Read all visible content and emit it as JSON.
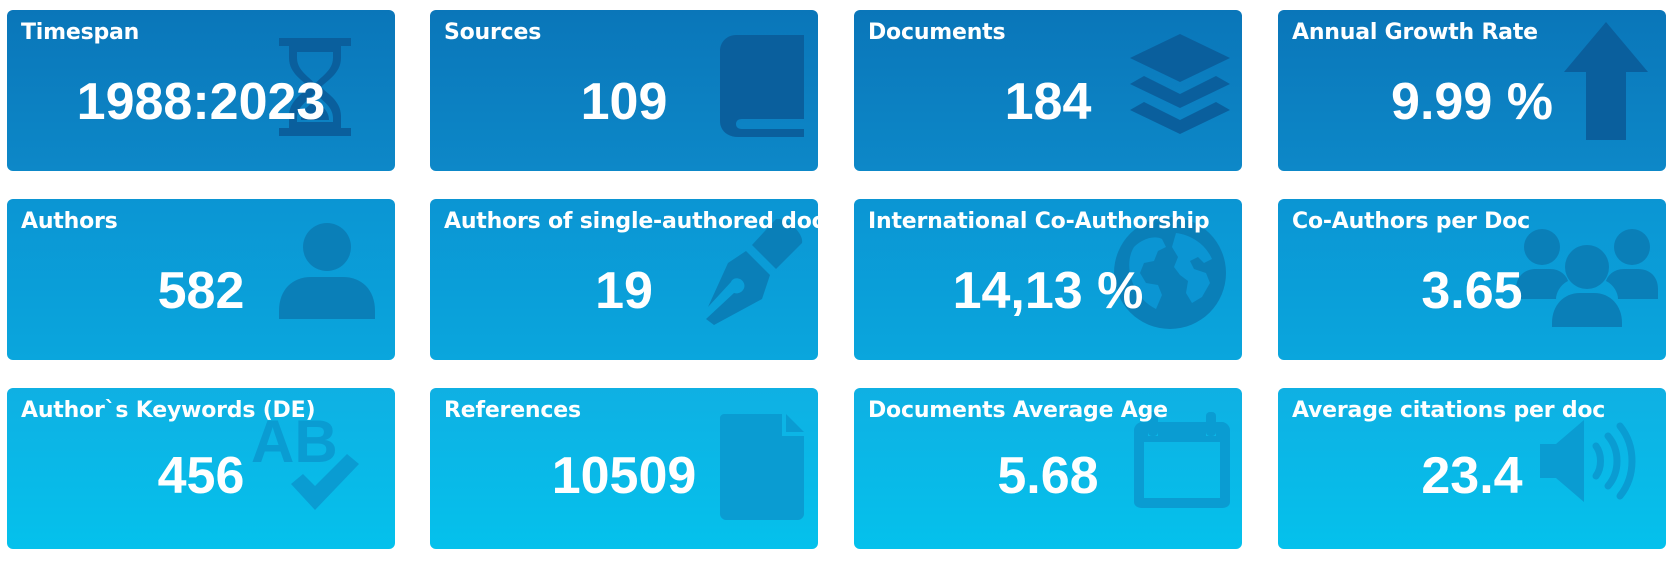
{
  "colors": {
    "row1": "#0a76b9",
    "row2": "#0b95d3",
    "row3": "#04c1ec",
    "icon_row1": "#0a5f9d",
    "icon_row2": "#0a7fb8",
    "icon_row3": "#0a9cd2"
  },
  "cards": [
    {
      "label": "Timespan",
      "value": "1988:2023",
      "icon": "hourglass-icon"
    },
    {
      "label": "Sources",
      "value": "109",
      "icon": "book-icon"
    },
    {
      "label": "Documents",
      "value": "184",
      "icon": "layers-icon"
    },
    {
      "label": "Annual Growth Rate",
      "value": "9.99 %",
      "icon": "arrow-up-icon"
    },
    {
      "label": "Authors",
      "value": "582",
      "icon": "user-icon"
    },
    {
      "label": "Authors of single-authored docs",
      "value": "19",
      "icon": "pen-nib-icon"
    },
    {
      "label": "International Co-Authorship",
      "value": "14,13 %",
      "icon": "globe-icon"
    },
    {
      "label": "Co-Authors per Doc",
      "value": "3.65",
      "icon": "users-icon"
    },
    {
      "label": "Author`s Keywords (DE)",
      "value": "456",
      "icon": "spell-check-icon"
    },
    {
      "label": "References",
      "value": "10509",
      "icon": "file-icon"
    },
    {
      "label": "Documents Average Age",
      "value": "5.68",
      "icon": "calendar-icon"
    },
    {
      "label": "Average citations per doc",
      "value": "23.4",
      "icon": "volume-icon"
    }
  ]
}
